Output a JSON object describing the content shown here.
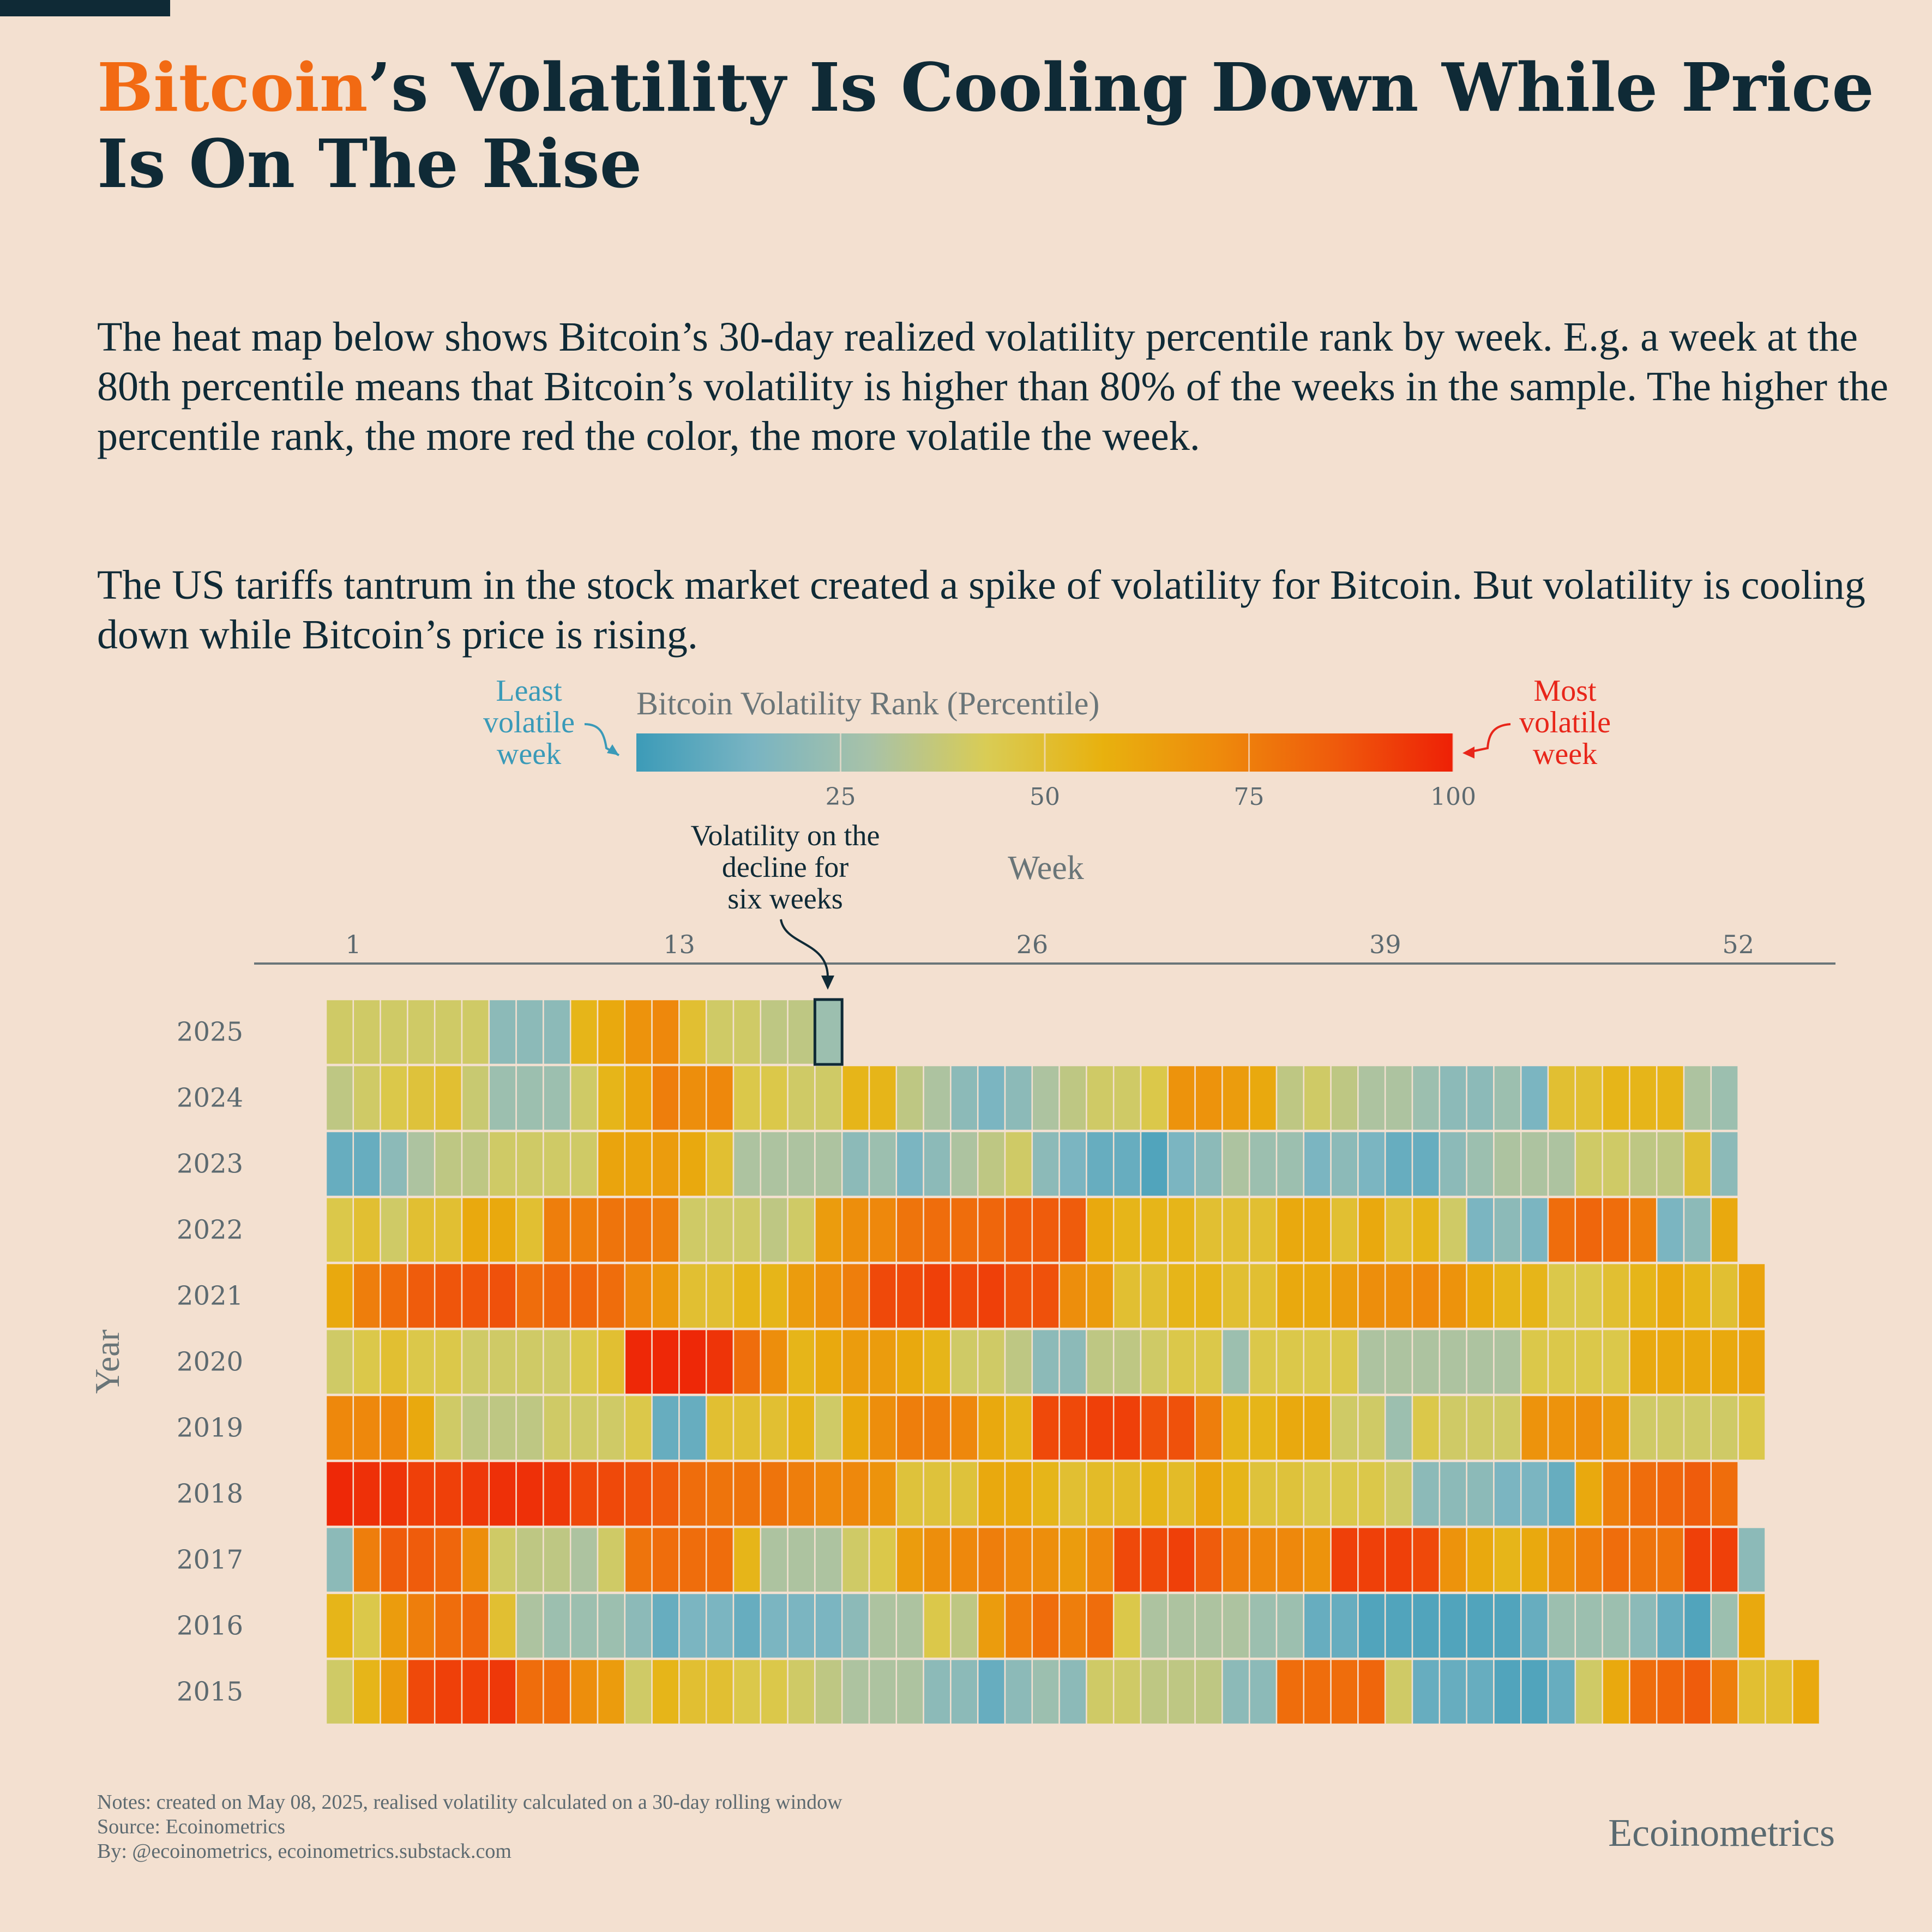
{
  "title": {
    "highlight": "Bitcoin",
    "rest_line1": "’s Volatility Is Cooling Down While Price",
    "line2": "Is On The Rise"
  },
  "subtitle": {
    "paragraph1": "The heat map below shows Bitcoin’s 30-day realized volatility percentile rank by week. E.g. a week at the 80th percentile means that Bitcoin’s volatility is higher than 80% of the weeks in the sample. The higher the percentile rank, the more red the color, the more volatile the week.",
    "paragraph2": "The US tariffs tantrum in the stock market created a spike of volatility for Bitcoin. But volatility is cooling down while Bitcoin’s price is rising."
  },
  "footer": {
    "notes": "Notes: created on May 08, 2025, realised volatility calculated on a 30-day rolling window",
    "source": "Source: Ecoinometrics",
    "by": "By: @ecoinometrics, ecoinometrics.substack.com"
  },
  "brand": "Ecoinometrics",
  "colors": {
    "background": "#f3e0d0",
    "title": "#0f2a36",
    "accent_orange": "#f26a13",
    "least_label": "#3a9ab8",
    "most_label": "#e8261a",
    "scale": [
      "#3c9bb8",
      "#79b4c2",
      "#a8c2a8",
      "#d9cc55",
      "#e8b10e",
      "#ee8a0c",
      "#ef5a0c",
      "#ee2006"
    ]
  },
  "chart_data": {
    "type": "heatmap",
    "xlabel": "Week",
    "ylabel": "Year",
    "x_ticks": [
      1,
      13,
      26,
      39,
      52
    ],
    "colorbar": {
      "title": "Bitcoin Volatility Rank (Percentile)",
      "ticks": [
        25,
        50,
        75,
        100
      ],
      "range": [
        0,
        100
      ],
      "low_label": [
        "Least",
        "volatile",
        "week"
      ],
      "high_label": [
        "Most",
        "volatile",
        "week"
      ]
    },
    "annotation": {
      "text": [
        "Volatility  on the",
        "decline for",
        "six weeks"
      ],
      "year": "2025",
      "week": 19
    },
    "years": [
      "2025",
      "2024",
      "2023",
      "2022",
      "2021",
      "2020",
      "2019",
      "2018",
      "2017",
      "2016",
      "2015"
    ],
    "values": [
      [
        40,
        40,
        40,
        40,
        40,
        40,
        20,
        20,
        20,
        55,
        60,
        68,
        72,
        50,
        40,
        40,
        35,
        35,
        25
      ],
      [
        35,
        40,
        45,
        48,
        50,
        38,
        25,
        25,
        25,
        40,
        55,
        62,
        75,
        70,
        72,
        45,
        45,
        40,
        40,
        55,
        55,
        35,
        30,
        20,
        15,
        20,
        30,
        35,
        40,
        40,
        45,
        68,
        68,
        65,
        60,
        35,
        40,
        35,
        30,
        30,
        25,
        20,
        20,
        25,
        15,
        50,
        50,
        55,
        55,
        55,
        30,
        25
      ],
      [
        10,
        10,
        20,
        30,
        35,
        35,
        40,
        40,
        40,
        40,
        62,
        62,
        65,
        60,
        50,
        30,
        30,
        30,
        30,
        20,
        25,
        15,
        20,
        30,
        35,
        40,
        20,
        15,
        10,
        10,
        5,
        15,
        20,
        30,
        25,
        25,
        15,
        20,
        15,
        10,
        10,
        20,
        25,
        30,
        30,
        30,
        40,
        40,
        35,
        35,
        50,
        20
      ],
      [
        45,
        50,
        40,
        50,
        50,
        60,
        60,
        50,
        75,
        75,
        78,
        78,
        75,
        40,
        40,
        40,
        35,
        40,
        65,
        70,
        72,
        78,
        80,
        80,
        82,
        85,
        85,
        85,
        60,
        55,
        55,
        55,
        50,
        50,
        50,
        60,
        60,
        50,
        60,
        50,
        55,
        40,
        15,
        20,
        15,
        80,
        82,
        80,
        75,
        15,
        20,
        60
      ],
      [
        60,
        75,
        80,
        85,
        87,
        87,
        88,
        80,
        82,
        82,
        80,
        72,
        66,
        50,
        50,
        55,
        55,
        65,
        70,
        75,
        90,
        90,
        92,
        90,
        92,
        88,
        88,
        70,
        65,
        50,
        50,
        55,
        55,
        50,
        50,
        60,
        60,
        65,
        70,
        70,
        72,
        68,
        60,
        55,
        55,
        45,
        45,
        50,
        55,
        60,
        55,
        50,
        62
      ],
      [
        40,
        45,
        50,
        45,
        45,
        40,
        40,
        40,
        40,
        45,
        50,
        98,
        98,
        98,
        95,
        80,
        70,
        55,
        60,
        65,
        65,
        60,
        55,
        40,
        40,
        35,
        20,
        20,
        35,
        35,
        40,
        45,
        45,
        25,
        45,
        45,
        45,
        45,
        30,
        30,
        30,
        30,
        30,
        30,
        45,
        45,
        45,
        45,
        60,
        60,
        60,
        60,
        62
      ],
      [
        72,
        72,
        72,
        60,
        40,
        35,
        35,
        35,
        40,
        40,
        40,
        45,
        10,
        10,
        50,
        50,
        50,
        55,
        40,
        60,
        70,
        75,
        75,
        72,
        60,
        55,
        90,
        90,
        92,
        92,
        88,
        88,
        75,
        55,
        55,
        60,
        60,
        40,
        40,
        25,
        45,
        40,
        40,
        40,
        68,
        68,
        70,
        65,
        40,
        40,
        40,
        40,
        45
      ],
      [
        98,
        96,
        95,
        92,
        92,
        94,
        96,
        96,
        94,
        90,
        90,
        88,
        85,
        80,
        78,
        78,
        78,
        75,
        72,
        72,
        68,
        48,
        48,
        48,
        60,
        60,
        55,
        50,
        52,
        52,
        55,
        52,
        62,
        55,
        48,
        48,
        45,
        45,
        45,
        40,
        20,
        20,
        20,
        15,
        15,
        10,
        60,
        75,
        80,
        82,
        85,
        80
      ],
      [
        20,
        75,
        85,
        85,
        82,
        70,
        40,
        35,
        35,
        30,
        40,
        78,
        80,
        80,
        80,
        55,
        30,
        30,
        30,
        40,
        45,
        65,
        70,
        72,
        75,
        72,
        70,
        65,
        72,
        90,
        90,
        92,
        85,
        75,
        72,
        72,
        68,
        92,
        92,
        92,
        90,
        68,
        60,
        55,
        60,
        70,
        75,
        80,
        78,
        78,
        92,
        92,
        20
      ],
      [
        55,
        45,
        65,
        75,
        80,
        82,
        50,
        30,
        25,
        25,
        25,
        20,
        10,
        15,
        15,
        10,
        15,
        15,
        15,
        20,
        30,
        30,
        45,
        35,
        65,
        75,
        80,
        75,
        80,
        45,
        30,
        30,
        30,
        30,
        25,
        25,
        10,
        10,
        5,
        5,
        5,
        5,
        5,
        5,
        10,
        25,
        25,
        25,
        20,
        10,
        5,
        25,
        60
      ],
      [
        40,
        55,
        65,
        90,
        92,
        92,
        94,
        80,
        80,
        70,
        65,
        40,
        55,
        50,
        50,
        45,
        45,
        40,
        35,
        30,
        30,
        30,
        20,
        20,
        10,
        20,
        25,
        20,
        40,
        40,
        35,
        35,
        35,
        20,
        20,
        80,
        80,
        80,
        82,
        40,
        10,
        10,
        10,
        5,
        5,
        10,
        40,
        60,
        80,
        82,
        85,
        75,
        50,
        50,
        60
      ]
    ]
  }
}
